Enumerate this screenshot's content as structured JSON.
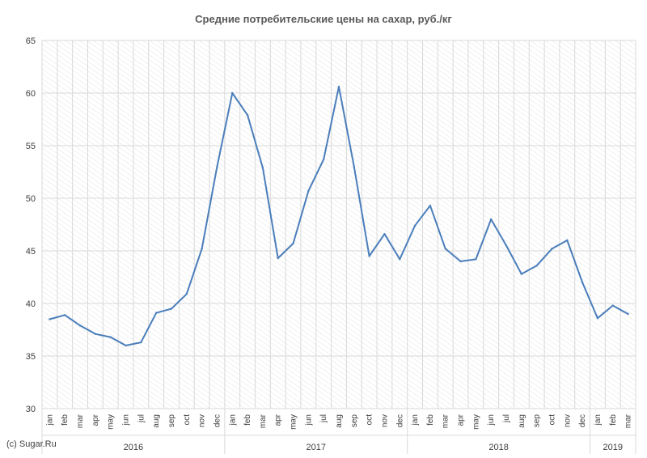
{
  "chart_data": {
    "type": "line",
    "title": "Средние потребительские цены на сахар, руб./кг",
    "xlabel": "",
    "ylabel": "",
    "ylim": [
      30,
      65
    ],
    "yticks": [
      30,
      35,
      40,
      45,
      50,
      55,
      60,
      65
    ],
    "grid": true,
    "line_color": "#4a7ebb",
    "categories": [
      "jan",
      "feb",
      "mar",
      "apr",
      "may",
      "jun",
      "jul",
      "aug",
      "sep",
      "oct",
      "nov",
      "dec",
      "jan",
      "feb",
      "mar",
      "apr",
      "may",
      "jun",
      "jul",
      "aug",
      "sep",
      "oct",
      "nov",
      "dec",
      "jan",
      "feb",
      "mar",
      "apr",
      "may",
      "jun",
      "jul",
      "aug",
      "sep",
      "oct",
      "nov",
      "dec",
      "jan",
      "feb",
      "mar"
    ],
    "year_groups": [
      {
        "label": "2016",
        "count": 12
      },
      {
        "label": "2017",
        "count": 12
      },
      {
        "label": "2018",
        "count": 12
      },
      {
        "label": "2019",
        "count": 3
      }
    ],
    "series": [
      {
        "values": [
          38.5,
          38.9,
          37.9,
          37.1,
          36.8,
          36.0,
          36.3,
          39.1,
          39.5,
          40.9,
          45.2,
          53.0,
          60.0,
          57.9,
          52.9,
          44.3,
          45.7,
          50.7,
          53.7,
          60.6,
          53.0,
          44.5,
          46.6,
          44.2,
          47.4,
          49.3,
          45.2,
          44.0,
          44.2,
          48.0,
          45.5,
          42.8,
          43.6,
          45.2,
          46.0,
          42.0,
          38.6,
          39.8,
          39.0
        ]
      }
    ]
  },
  "footer": {
    "copyright": "(c) Sugar.Ru"
  }
}
